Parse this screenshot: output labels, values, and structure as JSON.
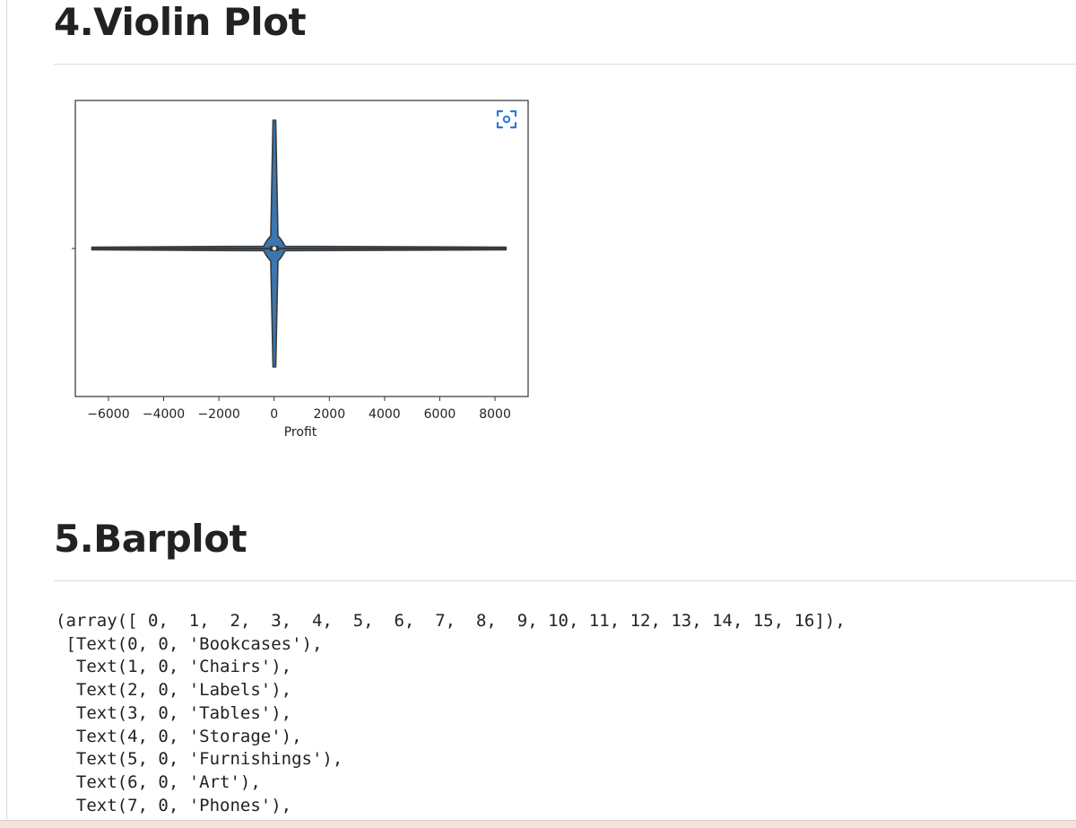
{
  "sections": {
    "violin": {
      "title": "4.Violin Plot"
    },
    "barplot": {
      "title": "5.Barplot"
    }
  },
  "chart_data": {
    "type": "violin",
    "xlabel": "Profit",
    "ylabel": "",
    "xlim": [
      -7200,
      9200
    ],
    "xticks": [
      -6000,
      -4000,
      -2000,
      0,
      2000,
      4000,
      6000,
      8000
    ],
    "xtick_labels": [
      "−6000",
      "−4000",
      "−2000",
      "0",
      "2000",
      "4000",
      "6000",
      "8000"
    ],
    "range": [
      -6600,
      8400
    ],
    "median": 9,
    "color": "#3a76b0",
    "grid": false
  },
  "icons": {
    "focus": "focus-mode-icon"
  },
  "output_lines": [
    "(array([ 0,  1,  2,  3,  4,  5,  6,  7,  8,  9, 10, 11, 12, 13, 14, 15, 16]),",
    " [Text(0, 0, 'Bookcases'),",
    "  Text(1, 0, 'Chairs'),",
    "  Text(2, 0, 'Labels'),",
    "  Text(3, 0, 'Tables'),",
    "  Text(4, 0, 'Storage'),",
    "  Text(5, 0, 'Furnishings'),",
    "  Text(6, 0, 'Art'),",
    "  Text(7, 0, 'Phones'),"
  ]
}
